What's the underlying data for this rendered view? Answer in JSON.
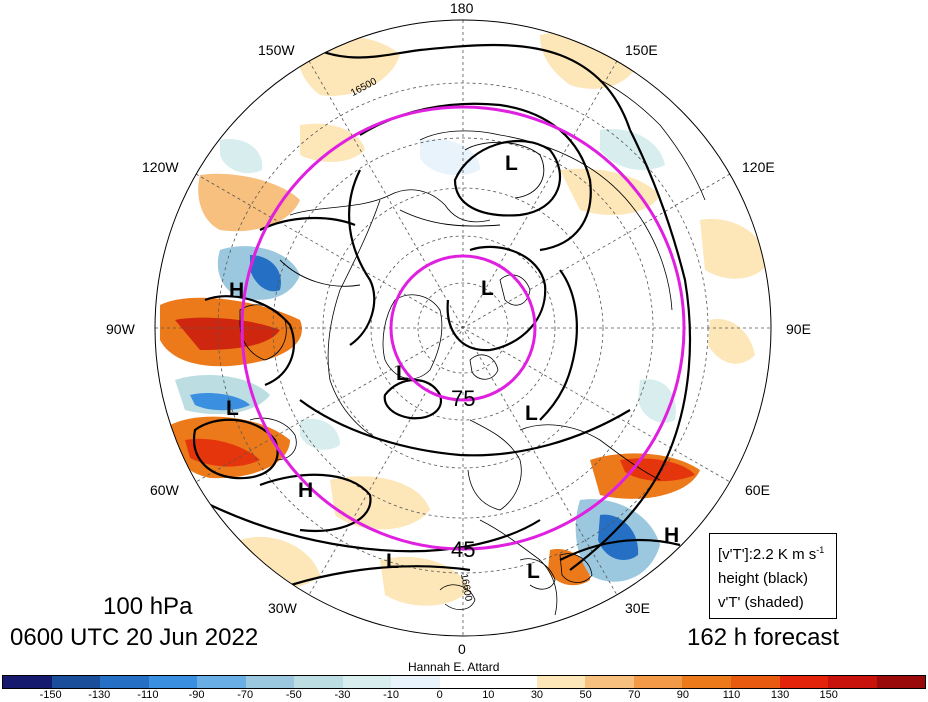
{
  "map": {
    "longitude_labels": {
      "n180": "180",
      "w150": "150W",
      "e150": "150E",
      "w120": "120W",
      "e120": "120E",
      "w90": "90W",
      "e90": "90E",
      "w60": "60W",
      "e60": "60E",
      "w30": "30W",
      "e30": "30E",
      "s0": "0"
    },
    "pressure_systems": {
      "h1": "H",
      "h2": "H",
      "h3": "H",
      "l1": "L",
      "l2": "L",
      "l3": "L",
      "l4": "L",
      "l5": "L",
      "l6": "L",
      "l7": "L"
    },
    "contour_labels": {
      "c1": "16500",
      "c2": "16600"
    },
    "latitude_labels": {
      "lat75": "75",
      "lat45": "45"
    },
    "colors": {
      "magenta": "#e020e0",
      "contour": "#000000"
    }
  },
  "header": {
    "level": "100 hPa",
    "valid_time": "0600 UTC 20 Jun 2022",
    "forecast": "162 h forecast"
  },
  "legend": {
    "mean": "[v'T']:2.2 K m s",
    "mean_sup": "-1",
    "height": "height (black)",
    "shaded": "v'T' (shaded)"
  },
  "credit": "Hannah E. Attard",
  "colorbar": {
    "colors": [
      "#161a6e",
      "#1a4e9a",
      "#2570c4",
      "#3b8fe0",
      "#6aaee6",
      "#9cc8df",
      "#bcdde1",
      "#d8eeee",
      "#e8f3fb",
      "#ffffff",
      "#ffffff",
      "#fde6b8",
      "#f7c07e",
      "#f29a47",
      "#ec7a1a",
      "#e85a10",
      "#e3240a",
      "#c8120c",
      "#9b0a0a"
    ],
    "ticks": [
      "-150",
      "-130",
      "-110",
      "-90",
      "-70",
      "-50",
      "-30",
      "-10",
      "0",
      "10",
      "30",
      "50",
      "70",
      "90",
      "110",
      "130",
      "150"
    ]
  }
}
